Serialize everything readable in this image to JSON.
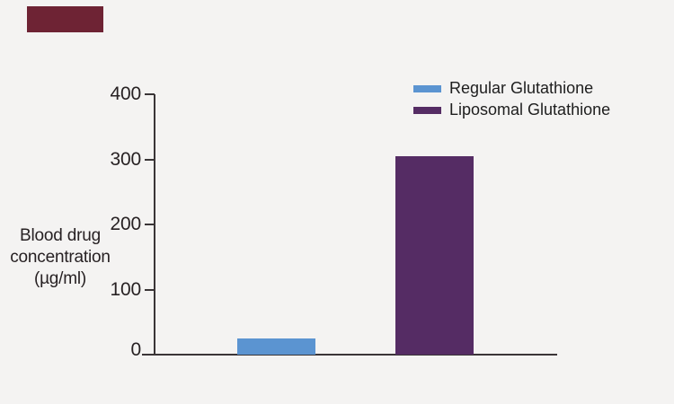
{
  "page": {
    "background_color": "#f4f3f2",
    "axis_color": "#3a3537",
    "text_color": "#272123",
    "legend_text_color": "#1e1e1e",
    "corner_block_color": "#6e2334"
  },
  "chart_data": {
    "type": "bar",
    "title": "",
    "xlabel": "",
    "ylabel": "Blood drug concentration (µg/ml)",
    "ylabel_lines": [
      "Blood drug",
      "concentration",
      "(µg/ml)"
    ],
    "categories": [
      "Regular Glutathione",
      "Liposomal Glutathione"
    ],
    "values": [
      25,
      305
    ],
    "series_colors": [
      "#5b94d1",
      "#552c64"
    ],
    "ylim": [
      0,
      400
    ],
    "yticks": [
      0,
      100,
      200,
      300,
      400
    ],
    "grid": false,
    "x_tick_labels_shown": false,
    "legend_position": "top-right",
    "legend": [
      {
        "label": "Regular Glutathione",
        "color": "#5b94d1"
      },
      {
        "label": "Liposomal Glutathione",
        "color": "#552c64"
      }
    ]
  }
}
